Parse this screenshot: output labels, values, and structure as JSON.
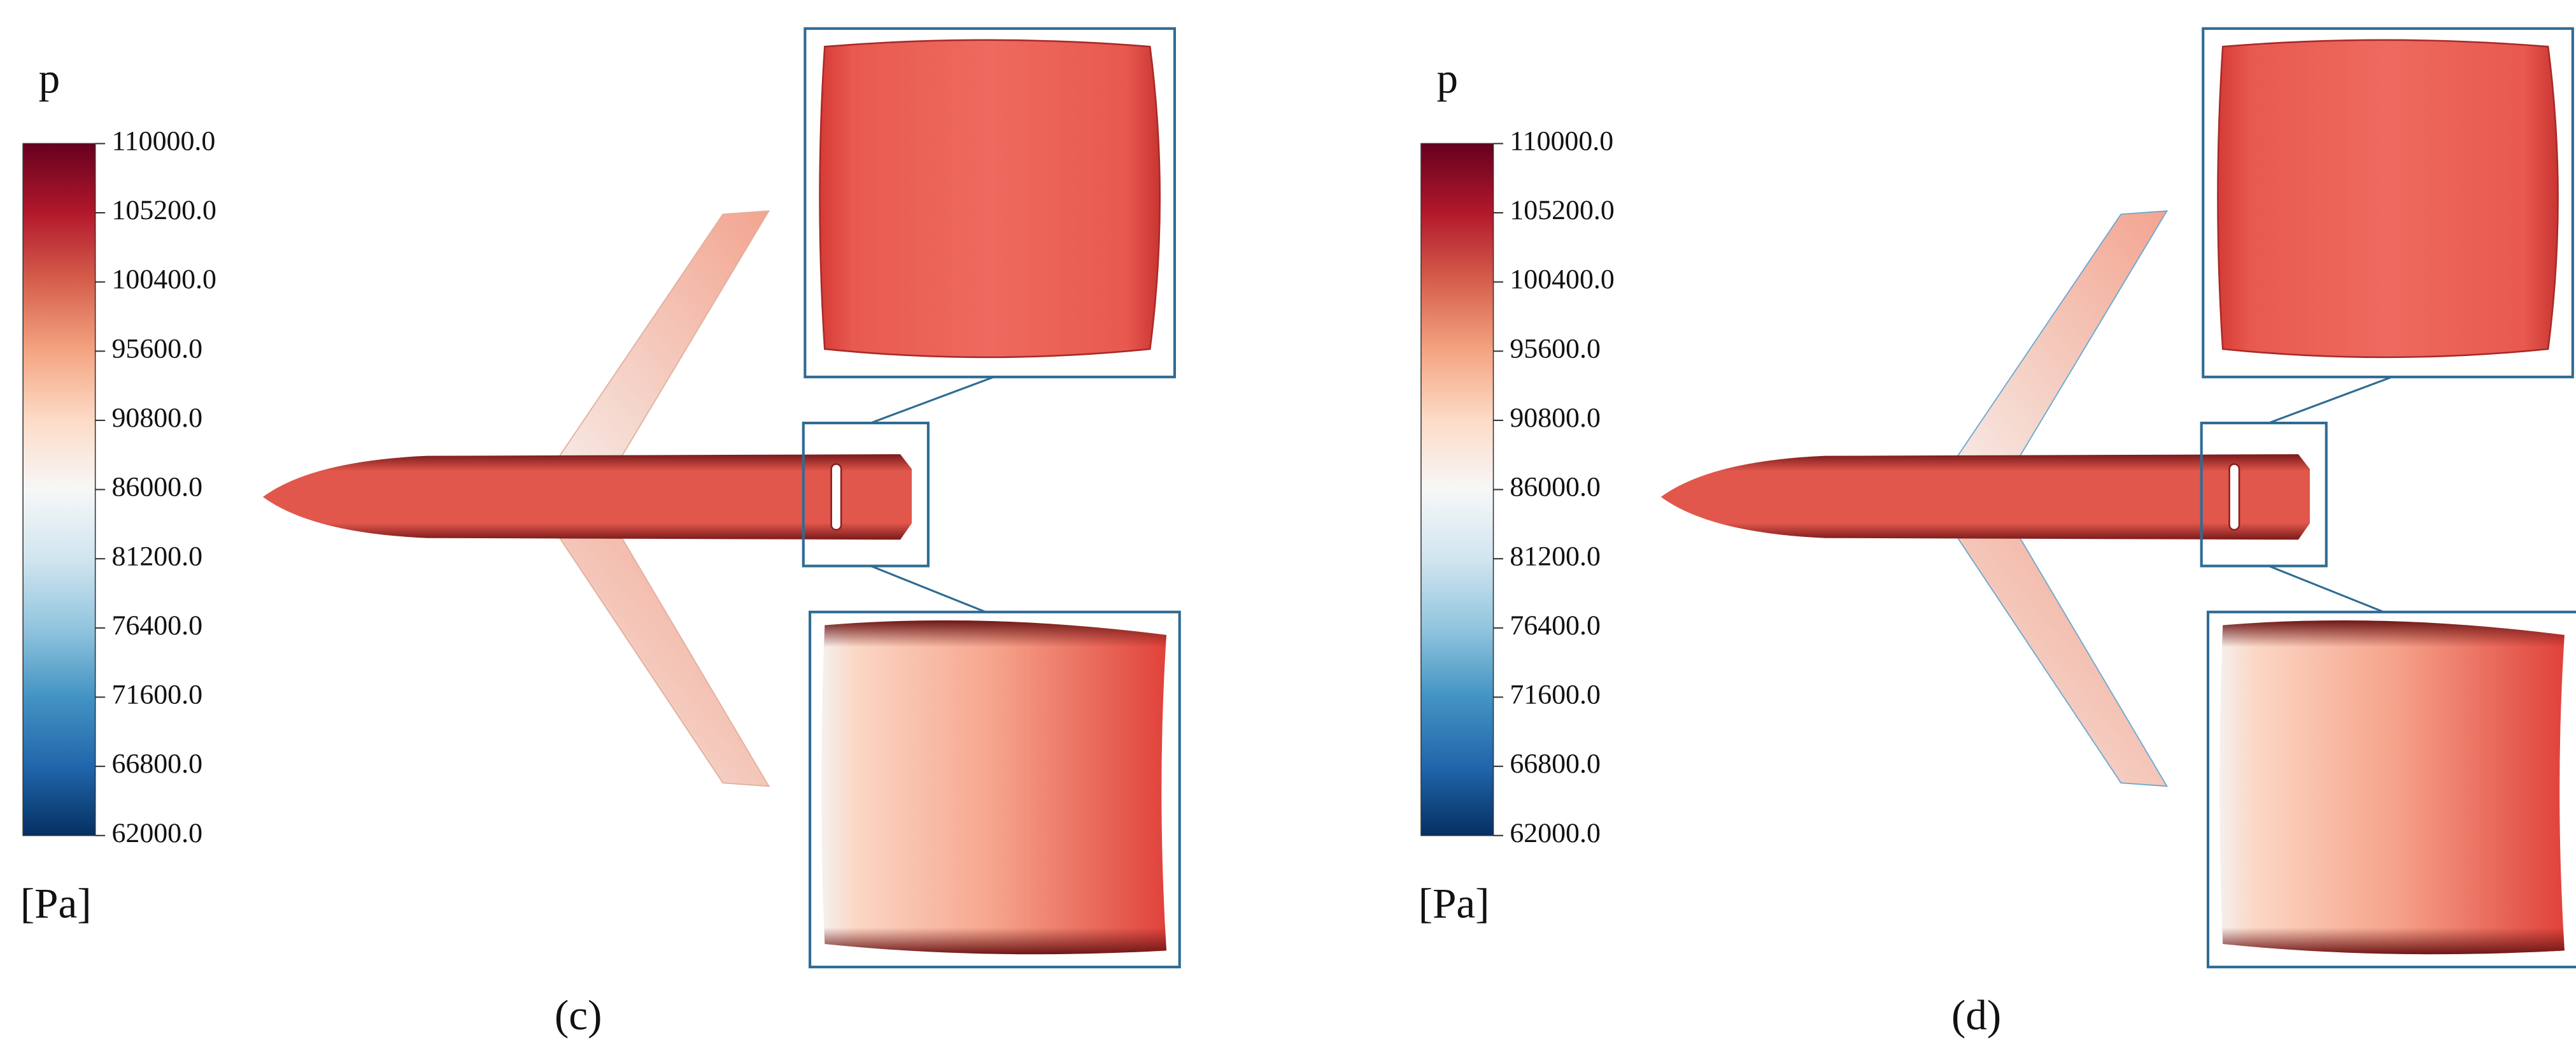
{
  "panels": [
    {
      "label": "(c)",
      "colorbar": {
        "title": "p",
        "unit": "[Pa]",
        "range": [
          62000,
          110000
        ],
        "ticks": [
          {
            "value": 110000,
            "label": "110000.0"
          },
          {
            "value": 105200,
            "label": "105200.0"
          },
          {
            "value": 100400,
            "label": "100400.0"
          },
          {
            "value": 95600,
            "label": "95600.0"
          },
          {
            "value": 90800,
            "label": "90800.0"
          },
          {
            "value": 86000,
            "label": "86000.0"
          },
          {
            "value": 81200,
            "label": "81200.0"
          },
          {
            "value": 76400,
            "label": "76400.0"
          },
          {
            "value": 71600,
            "label": "71600.0"
          },
          {
            "value": 66800,
            "label": "66800.0"
          },
          {
            "value": 62000,
            "label": "62000.0"
          }
        ]
      }
    },
    {
      "label": "(d)",
      "colorbar": {
        "title": "p",
        "unit": "[Pa]",
        "range": [
          62000,
          110000
        ],
        "ticks": [
          {
            "value": 110000,
            "label": "110000.0"
          },
          {
            "value": 105200,
            "label": "105200.0"
          },
          {
            "value": 100400,
            "label": "100400.0"
          },
          {
            "value": 95600,
            "label": "95600.0"
          },
          {
            "value": 90800,
            "label": "90800.0"
          },
          {
            "value": 86000,
            "label": "86000.0"
          },
          {
            "value": 81200,
            "label": "81200.0"
          },
          {
            "value": 76400,
            "label": "76400.0"
          },
          {
            "value": 71600,
            "label": "71600.0"
          },
          {
            "value": 66800,
            "label": "66800.0"
          },
          {
            "value": 62000,
            "label": "62000.0"
          }
        ]
      }
    }
  ]
}
